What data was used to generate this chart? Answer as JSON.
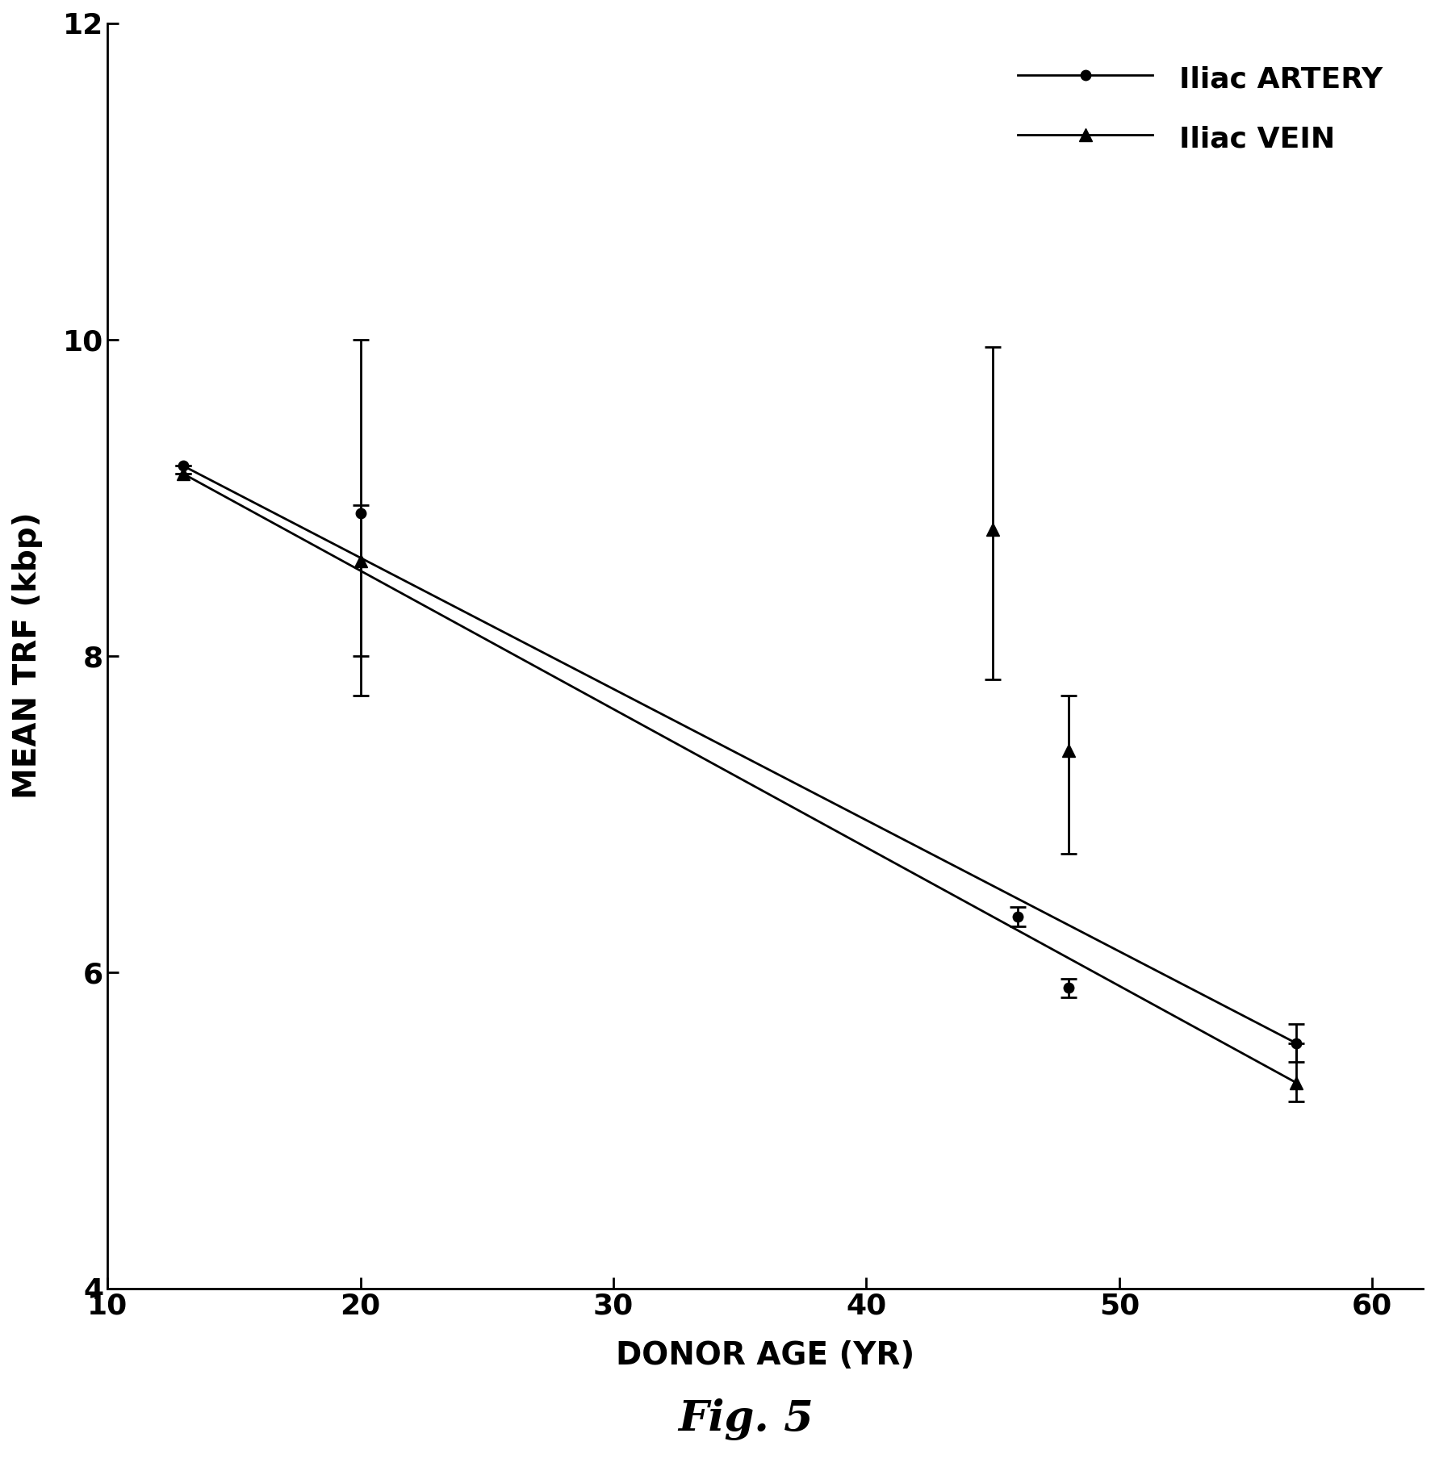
{
  "artery_x": [
    13,
    20,
    46,
    48,
    57
  ],
  "artery_y": [
    9.2,
    8.9,
    6.35,
    5.9,
    5.55
  ],
  "artery_yerr_lo": [
    0.0,
    0.9,
    0.06,
    0.06,
    0.12
  ],
  "artery_yerr_hi": [
    0.0,
    1.1,
    0.06,
    0.06,
    0.12
  ],
  "vein_x": [
    13,
    20,
    45,
    48,
    57
  ],
  "vein_y": [
    9.15,
    8.6,
    8.8,
    7.4,
    5.3
  ],
  "vein_yerr_lo": [
    0.0,
    0.85,
    0.95,
    0.65,
    0.12
  ],
  "vein_yerr_hi": [
    0.0,
    0.35,
    1.15,
    0.35,
    0.25
  ],
  "artery_trend_x": [
    13,
    57
  ],
  "artery_trend_y": [
    9.2,
    5.55
  ],
  "vein_trend_x": [
    13,
    57
  ],
  "vein_trend_y": [
    9.15,
    5.3
  ],
  "xlabel": "DONOR AGE (YR)",
  "ylabel": "MEAN TRF (kbp)",
  "title": "Fig. 5",
  "xlim": [
    10,
    62
  ],
  "ylim": [
    4,
    12
  ],
  "xticks": [
    10,
    20,
    30,
    40,
    50,
    60
  ],
  "yticks": [
    4,
    6,
    8,
    10,
    12
  ],
  "legend_artery": "Iliac ARTERY",
  "legend_vein": "Iliac VEIN",
  "bg_color": "#ffffff",
  "line_color": "#000000"
}
